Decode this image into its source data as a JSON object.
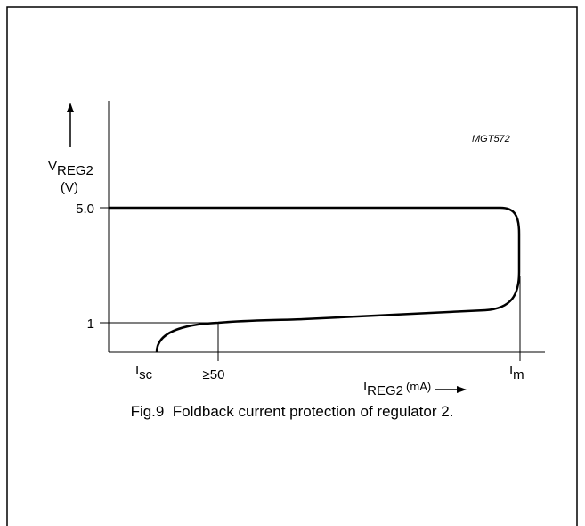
{
  "figure_id": "MGT572",
  "y_axis": {
    "label": "V",
    "label_sub": "REG2",
    "unit": "(V)",
    "ticks": [
      "5.0",
      "1"
    ]
  },
  "x_axis": {
    "label": "I",
    "label_sub": "REG2",
    "unit": "(mA)",
    "ticks": [
      {
        "main": "I",
        "sub": "sc"
      },
      "≥50",
      {
        "main": "I",
        "sub": "m"
      }
    ]
  },
  "caption": "Fig.9  Foldback current protection of regulator 2."
}
